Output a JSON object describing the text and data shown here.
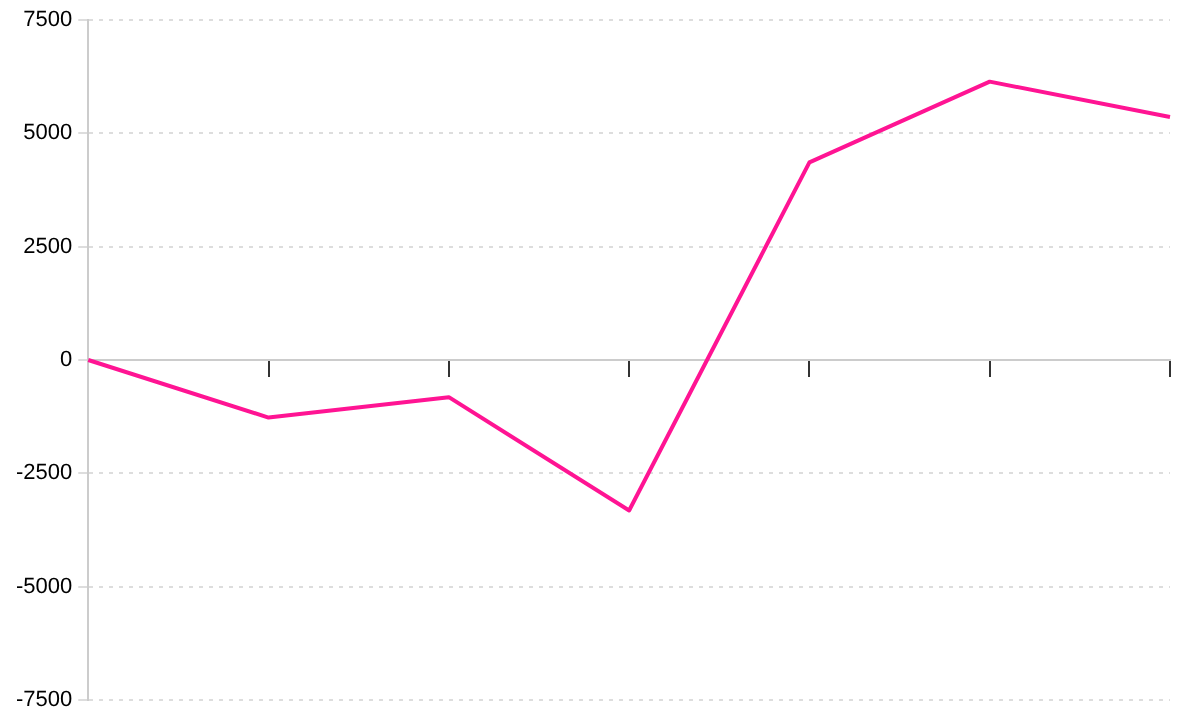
{
  "chart_data": {
    "type": "line",
    "categories": [
      null,
      null,
      null,
      null,
      null,
      null,
      null
    ],
    "series": [
      {
        "color": "#ff1493",
        "values": [
          0,
          -1270,
          -820,
          -3320,
          4360,
          6140,
          5360
        ]
      }
    ],
    "ylim": [
      -7500,
      7500
    ],
    "yticks": [
      -7500,
      -5000,
      -2500,
      0,
      2500,
      5000,
      7500
    ],
    "grid": "y",
    "legend": false,
    "marker": "none",
    "line_style": "solid"
  }
}
